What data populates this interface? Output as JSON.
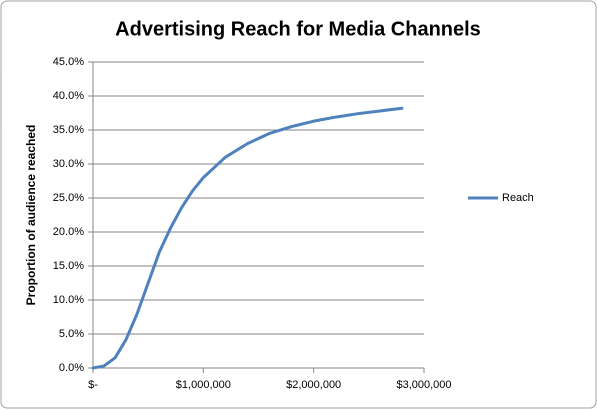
{
  "chart_data": {
    "type": "line",
    "title": "Advertising Reach for Media Channels",
    "y_label": "Proportion of audience reached",
    "x": [
      0,
      100000,
      200000,
      300000,
      400000,
      500000,
      600000,
      700000,
      800000,
      900000,
      1000000,
      1200000,
      1400000,
      1600000,
      1800000,
      2000000,
      2200000,
      2400000,
      2600000,
      2800000
    ],
    "series": [
      {
        "name": "Reach",
        "color": "#4f81bd",
        "values": [
          0,
          0.3,
          1.5,
          4.2,
          8,
          12.5,
          17,
          20.5,
          23.5,
          26,
          28,
          31,
          33,
          34.5,
          35.5,
          36.3,
          36.9,
          37.4,
          37.8,
          38.2
        ]
      }
    ],
    "xlim": [
      0,
      3000000
    ],
    "xticks": [
      {
        "value": 0,
        "label": "$-"
      },
      {
        "value": 1000000,
        "label": "$1,000,000"
      },
      {
        "value": 2000000,
        "label": "$2,000,000"
      },
      {
        "value": 3000000,
        "label": "$3,000,000"
      }
    ],
    "ylim": [
      0,
      45
    ],
    "yticks": [
      {
        "value": 0,
        "label": "0.0%"
      },
      {
        "value": 5,
        "label": "5.0%"
      },
      {
        "value": 10,
        "label": "10.0%"
      },
      {
        "value": 15,
        "label": "15.0%"
      },
      {
        "value": 20,
        "label": "20.0%"
      },
      {
        "value": 25,
        "label": "25.0%"
      },
      {
        "value": 30,
        "label": "30.0%"
      },
      {
        "value": 35,
        "label": "35.0%"
      },
      {
        "value": 40,
        "label": "40.0%"
      },
      {
        "value": 45,
        "label": "45.0%"
      }
    ],
    "grid": true,
    "legend": "right"
  }
}
